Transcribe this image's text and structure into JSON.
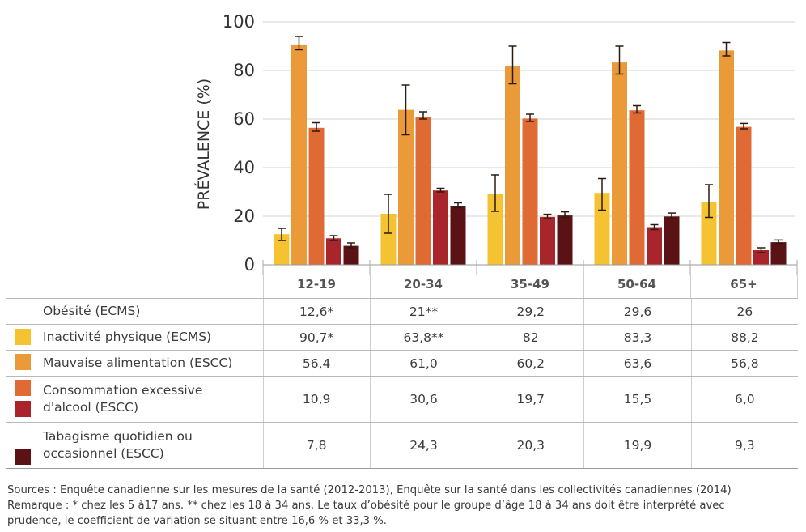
{
  "chart_data": {
    "type": "bar",
    "title": "",
    "xlabel": "",
    "ylabel": "PRÉVALENCE (%)",
    "ylim": [
      0,
      100
    ],
    "yticks": [
      0,
      20,
      40,
      60,
      80,
      100
    ],
    "grid": true,
    "categories": [
      "12-19",
      "20-34",
      "35-49",
      "50-64",
      "65+"
    ],
    "series": [
      {
        "name": "Obésité (ECMS)",
        "color": "#F5C332",
        "values": [
          12.6,
          21,
          29.2,
          29.6,
          26
        ],
        "error_low": [
          10,
          13,
          22,
          22.5,
          19.5
        ],
        "error_high": [
          15,
          29,
          37,
          35.5,
          33
        ]
      },
      {
        "name": "Inactivité physique (ECMS)",
        "color": "#EB9A3A",
        "values": [
          90.7,
          63.8,
          82,
          83.3,
          88.2
        ],
        "error_low": [
          88.5,
          53.5,
          74.5,
          78.5,
          86
        ],
        "error_high": [
          94,
          74,
          90,
          90,
          91.5
        ]
      },
      {
        "name": "Mauvaise alimentation (ESCC)",
        "color": "#E06A33",
        "values": [
          56.4,
          61.0,
          60.2,
          63.6,
          56.8
        ],
        "error_low": [
          55,
          60,
          59,
          62.5,
          56
        ],
        "error_high": [
          58.5,
          63,
          62,
          65.5,
          58.2
        ]
      },
      {
        "name": "Consommation excessive d'alcool (ESCC)",
        "color": "#A8262B",
        "values": [
          10.9,
          30.6,
          19.7,
          15.5,
          6.0
        ],
        "error_low": [
          10,
          30,
          19,
          14.5,
          5
        ],
        "error_high": [
          12,
          31.5,
          20.8,
          16.5,
          7
        ]
      },
      {
        "name": "Tabagisme quotidien ou occasionnel (ESCC)",
        "color": "#5A1214",
        "values": [
          7.8,
          24.3,
          20.3,
          19.9,
          9.3
        ],
        "error_low": [
          7,
          23.5,
          19.5,
          19,
          8.8
        ],
        "error_high": [
          9,
          25.5,
          21.8,
          21.3,
          10.2
        ]
      }
    ],
    "legend_placement": "table-below"
  },
  "table": {
    "headers": [
      "12-19",
      "20-34",
      "35-49",
      "50-64",
      "65+"
    ],
    "rows": [
      {
        "label_lines": [
          "Obésité (ECMS)"
        ],
        "values": [
          "12,6*",
          "21**",
          "29,2",
          "29,6",
          "26"
        ]
      },
      {
        "label_lines": [
          "Inactivité physique (ECMS)"
        ],
        "values": [
          "90,7*",
          "63,8**",
          "82",
          "83,3",
          "88,2"
        ]
      },
      {
        "label_lines": [
          "Mauvaise alimentation (ESCC)"
        ],
        "values": [
          "56,4",
          "61,0",
          "60,2",
          "63,6",
          "56,8"
        ]
      },
      {
        "label_lines": [
          "Consommation excessive",
          "d'alcool (ESCC)"
        ],
        "values": [
          "10,9",
          "30,6",
          "19,7",
          "15,5",
          "6,0"
        ]
      },
      {
        "label_lines": [
          "Tabagisme quotidien ou",
          "occasionnel (ESCC)"
        ],
        "values": [
          "7,8",
          "24,3",
          "20,3",
          "19,9",
          "9,3"
        ]
      }
    ]
  },
  "notes": {
    "line1": "Sources : Enquête canadienne sur les mesures de la santé (2012-2013), Enquête sur la santé dans les collectivités canadiennes (2014)",
    "line2": "Remarque : * chez les 5 à17 ans. ** chez les 18 à 34 ans. Le taux d’obésité pour le groupe d’âge 18 à 34 ans doit être interprété avec",
    "line3": "prudence, le coefficient de variation se situant entre 16,6 % et 33,3 %."
  }
}
